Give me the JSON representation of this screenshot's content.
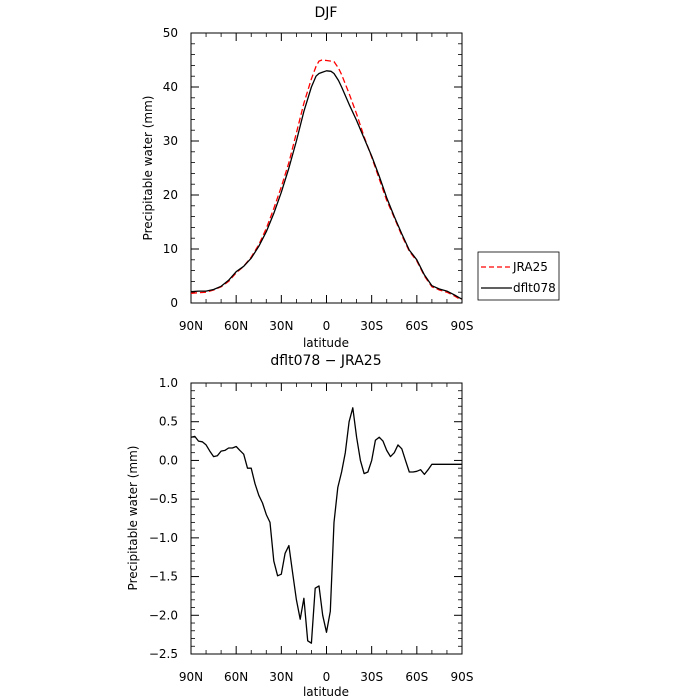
{
  "chart_data": [
    {
      "type": "line",
      "title": "DJF",
      "xlabel": "latitude",
      "ylabel": "Precipitable water (mm)",
      "xlim": [
        90,
        -90
      ],
      "ylim": [
        0,
        50
      ],
      "x_ticks": [
        90,
        60,
        30,
        0,
        -30,
        -60,
        -90
      ],
      "x_tick_labels": [
        "90N",
        "60N",
        "30N",
        "0",
        "30S",
        "60S",
        "90S"
      ],
      "y_ticks": [
        0,
        10,
        20,
        30,
        40,
        50
      ],
      "y_tick_labels": [
        "0",
        "10",
        "20",
        "30",
        "40",
        "50"
      ],
      "legend_position": "right",
      "series": [
        {
          "name": "JRA25",
          "color": "#ff0000",
          "dash": "dashed",
          "x": [
            90,
            85,
            80,
            75,
            70,
            65,
            60,
            55,
            50,
            45,
            40,
            35,
            30,
            25,
            20,
            15,
            10,
            7,
            5,
            3,
            0,
            -3,
            -5,
            -8,
            -10,
            -15,
            -20,
            -25,
            -30,
            -35,
            -40,
            -45,
            -50,
            -55,
            -60,
            -65,
            -70,
            -75,
            -80,
            -85,
            -88,
            -90
          ],
          "y": [
            1.8,
            1.9,
            2.0,
            2.4,
            3.0,
            4.0,
            5.6,
            6.8,
            8.5,
            10.8,
            13.8,
            17.5,
            21.5,
            26.0,
            31.5,
            37.0,
            41.5,
            43.8,
            44.8,
            45.0,
            44.9,
            44.8,
            44.7,
            43.5,
            42.3,
            38.8,
            35.0,
            30.8,
            27.0,
            23.0,
            19.0,
            15.8,
            12.5,
            9.6,
            7.8,
            5.0,
            3.0,
            2.4,
            2.0,
            1.3,
            0.8,
            0.7
          ]
        },
        {
          "name": "dflt078",
          "color": "#000000",
          "dash": "solid",
          "x": [
            90,
            85,
            80,
            75,
            70,
            65,
            60,
            55,
            50,
            45,
            40,
            35,
            30,
            25,
            20,
            15,
            10,
            7,
            5,
            3,
            0,
            -3,
            -5,
            -8,
            -10,
            -15,
            -20,
            -25,
            -30,
            -35,
            -40,
            -45,
            -50,
            -55,
            -60,
            -65,
            -70,
            -75,
            -80,
            -85,
            -88,
            -90
          ],
          "y": [
            2.1,
            2.2,
            2.2,
            2.5,
            3.1,
            4.2,
            5.8,
            6.8,
            8.3,
            10.5,
            13.2,
            16.6,
            20.5,
            25.0,
            30.0,
            35.5,
            40.0,
            42.0,
            42.5,
            42.7,
            43.0,
            42.9,
            42.5,
            41.2,
            40.0,
            36.8,
            33.8,
            30.5,
            27.2,
            23.5,
            19.5,
            16.0,
            12.8,
            9.8,
            8.0,
            5.2,
            3.2,
            2.6,
            2.2,
            1.5,
            1.0,
            0.7
          ]
        }
      ]
    },
    {
      "type": "line",
      "title": "dflt078 − JRA25",
      "xlabel": "latitude",
      "ylabel": "Precipitable water (mm)",
      "xlim": [
        90,
        -90
      ],
      "ylim": [
        -2.5,
        1.0
      ],
      "x_ticks": [
        90,
        60,
        30,
        0,
        -30,
        -60,
        -90
      ],
      "x_tick_labels": [
        "90N",
        "60N",
        "30N",
        "0",
        "30S",
        "60S",
        "90S"
      ],
      "y_ticks": [
        1.0,
        0.5,
        0.0,
        -0.5,
        -1.0,
        -1.5,
        -2.0,
        -2.5
      ],
      "y_tick_labels": [
        "1.0",
        "0.5",
        "0.0",
        "−0.5",
        "−1.0",
        "−1.5",
        "−2.0",
        "−2.5"
      ],
      "series": [
        {
          "color": "#000000",
          "dash": "solid",
          "x": [
            90,
            87.5,
            85,
            82.5,
            80,
            77.5,
            75,
            72.5,
            70,
            67.5,
            65,
            62.5,
            60,
            57.5,
            55,
            52.5,
            50,
            47.5,
            45,
            42.5,
            40,
            37.5,
            35,
            32.5,
            30,
            27.5,
            25,
            22.5,
            20,
            17.5,
            15,
            12.5,
            10,
            7.5,
            5,
            2.5,
            0,
            -2.5,
            -5,
            -7.5,
            -10,
            -12.5,
            -15,
            -17.5,
            -20,
            -22.5,
            -25,
            -27.5,
            -30,
            -32.5,
            -35,
            -37.5,
            -40,
            -42.5,
            -45,
            -47.5,
            -50,
            -52.5,
            -55,
            -57.5,
            -60,
            -62.5,
            -65,
            -67.5,
            -70,
            -72.5,
            -75,
            -77.5,
            -80,
            -82.5,
            -85,
            -87.5,
            -90
          ],
          "y": [
            0.3,
            0.31,
            0.25,
            0.24,
            0.2,
            0.12,
            0.05,
            0.06,
            0.12,
            0.13,
            0.16,
            0.16,
            0.18,
            0.13,
            0.08,
            -0.1,
            -0.1,
            -0.3,
            -0.45,
            -0.55,
            -0.7,
            -0.8,
            -1.3,
            -1.49,
            -1.47,
            -1.2,
            -1.1,
            -1.45,
            -1.8,
            -2.05,
            -1.78,
            -2.33,
            -2.36,
            -1.65,
            -1.62,
            -2.0,
            -2.22,
            -1.95,
            -0.8,
            -0.35,
            -0.15,
            0.1,
            0.5,
            0.68,
            0.3,
            0.0,
            -0.17,
            -0.15,
            0.0,
            0.26,
            0.3,
            0.25,
            0.13,
            0.05,
            0.1,
            0.2,
            0.15,
            0.0,
            -0.15,
            -0.15,
            -0.14,
            -0.12,
            -0.18,
            -0.12,
            -0.05,
            -0.05,
            -0.05,
            -0.05,
            -0.05,
            -0.05,
            -0.05,
            -0.05,
            -0.05
          ]
        }
      ]
    }
  ]
}
